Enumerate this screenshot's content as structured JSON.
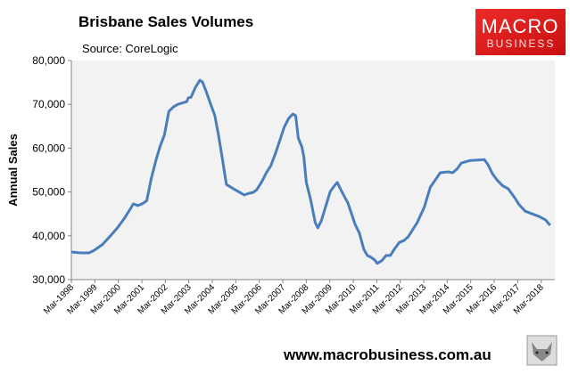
{
  "chart_data": {
    "type": "line",
    "title": "Brisbane Sales Volumes",
    "subtitle": "Source: CoreLogic",
    "xlabel": "",
    "ylabel": "Annual Sales",
    "ylim": [
      30000,
      80000
    ],
    "yticks": [
      30000,
      40000,
      50000,
      60000,
      70000,
      80000
    ],
    "ytick_labels": [
      "30,000",
      "40,000",
      "50,000",
      "60,000",
      "70,000",
      "80,000"
    ],
    "xlim": [
      1998.17,
      2018.75
    ],
    "xtick_labels": [
      "Mar-1998",
      "Mar-1999",
      "Mar-2000",
      "Mar-2001",
      "Mar-2002",
      "Mar-2003",
      "Mar-2004",
      "Mar-2005",
      "Mar-2006",
      "Mar-2007",
      "Mar-2008",
      "Mar-2009",
      "Mar-2010",
      "Mar-2011",
      "Mar-2012",
      "Mar-2013",
      "Mar-2014",
      "Mar-2015",
      "Mar-2016",
      "Mar-2017",
      "Mar-2018"
    ],
    "grid": false,
    "legend": "none",
    "series": [
      {
        "name": "Brisbane annual sales",
        "color": "#4a7ebb",
        "x": [
          1998.17,
          1998.55,
          1998.92,
          1999.15,
          1999.49,
          1999.87,
          2000.13,
          2000.43,
          2000.62,
          2000.81,
          2001.0,
          2001.19,
          2001.38,
          2001.57,
          2001.79,
          2001.94,
          2002.13,
          2002.32,
          2002.51,
          2002.7,
          2003.08,
          2003.15,
          2003.26,
          2003.45,
          2003.64,
          2003.75,
          2003.91,
          2004.09,
          2004.28,
          2004.43,
          2004.58,
          2004.77,
          2004.96,
          2005.08,
          2005.34,
          2005.53,
          2005.72,
          2005.91,
          2006.06,
          2006.28,
          2006.47,
          2006.66,
          2006.85,
          2007.04,
          2007.23,
          2007.42,
          2007.6,
          2007.72,
          2007.83,
          2007.98,
          2008.06,
          2008.17,
          2008.36,
          2008.55,
          2008.66,
          2008.81,
          2008.96,
          2009.19,
          2009.38,
          2009.49,
          2009.68,
          2009.94,
          2010.25,
          2010.43,
          2010.62,
          2010.77,
          2010.92,
          2011.08,
          2011.19,
          2011.38,
          2011.57,
          2011.75,
          2011.91,
          2012.13,
          2012.32,
          2012.51,
          2012.89,
          2013.19,
          2013.45,
          2013.72,
          2013.87,
          2014.21,
          2014.4,
          2014.58,
          2014.77,
          2015.15,
          2015.75,
          2015.91,
          2016.09,
          2016.28,
          2016.51,
          2016.77,
          2017.04,
          2017.23,
          2017.49,
          2017.79,
          2018.09,
          2018.36,
          2018.55
        ],
        "values": [
          36300,
          36100,
          36100,
          36700,
          38000,
          40200,
          41800,
          44000,
          45600,
          47300,
          46900,
          47300,
          48000,
          53000,
          57600,
          60300,
          63000,
          68400,
          69400,
          70000,
          70600,
          71500,
          71600,
          73900,
          75500,
          75100,
          72900,
          70200,
          67400,
          63000,
          58200,
          51700,
          51100,
          50700,
          49900,
          49300,
          49700,
          49900,
          50500,
          52400,
          54400,
          56000,
          58700,
          61700,
          64800,
          66800,
          67800,
          67400,
          62300,
          60300,
          58200,
          52200,
          48100,
          43000,
          41800,
          43400,
          46100,
          50100,
          51500,
          52200,
          50100,
          47500,
          42600,
          40600,
          36900,
          35500,
          35100,
          34500,
          33700,
          34300,
          35500,
          35500,
          36900,
          38500,
          38900,
          39800,
          43000,
          46500,
          51100,
          53200,
          54400,
          54600,
          54400,
          55200,
          56600,
          57200,
          57400,
          56200,
          54200,
          52800,
          51500,
          50700,
          48700,
          47100,
          45600,
          45000,
          44400,
          43600,
          42400
        ]
      }
    ]
  },
  "branding": {
    "logo_line1": "MACRO",
    "logo_line2": "BUSINESS",
    "url": "www.macrobusiness.com.au",
    "accent": "#e31e24"
  }
}
